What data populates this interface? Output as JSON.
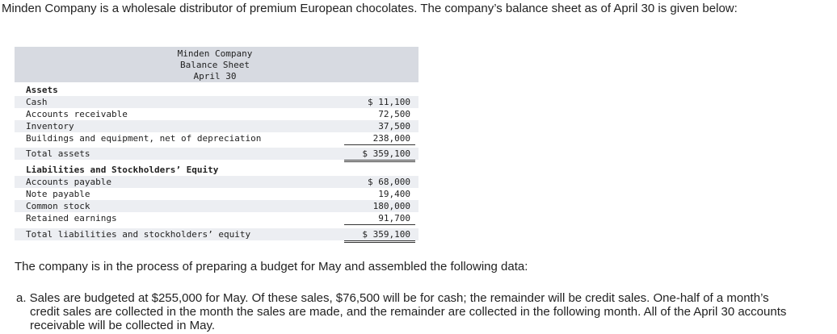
{
  "intro": "Minden Company is a wholesale distributor of premium European chocolates. The company’s balance sheet as of April 30 is given below:",
  "sheet": {
    "company": "Minden Company",
    "title": "Balance Sheet",
    "date": "April 30",
    "assets_heading": "Assets",
    "assets": [
      {
        "label": "Cash",
        "amount": "$ 11,100"
      },
      {
        "label": "Accounts receivable",
        "amount": "72,500"
      },
      {
        "label": "Inventory",
        "amount": "37,500"
      },
      {
        "label": "Buildings and equipment, net of depreciation",
        "amount": "238,000"
      }
    ],
    "total_assets": {
      "label": "Total assets",
      "amount": "$ 359,100"
    },
    "liabilities_heading": "Liabilities and Stockholders’ Equity",
    "liabilities": [
      {
        "label": "Accounts payable",
        "amount": "$ 68,000"
      },
      {
        "label": "Note payable",
        "amount": "19,400"
      },
      {
        "label": "Common stock",
        "amount": "180,000"
      },
      {
        "label": "Retained earnings",
        "amount": "91,700"
      }
    ],
    "total_liabilities": {
      "label": "Total liabilities and stockholders’ equity",
      "amount": "$ 359,100"
    }
  },
  "middle": "The company is in the process of preparing a budget for May and assembled the following data:",
  "item_a": "a. Sales are budgeted at $255,000 for May. Of these sales, $76,500 will be for cash; the remainder will be credit sales. One-half of a month’s credit sales are collected in the month the sales are made, and the remainder are collected in the following month. All of the April 30 accounts receivable will be collected in May."
}
